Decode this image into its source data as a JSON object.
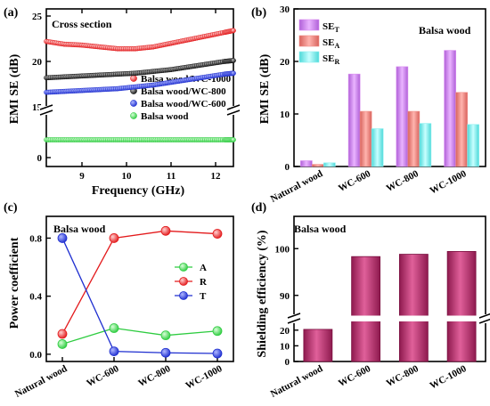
{
  "chart_data": [
    {
      "panel": "(a)",
      "type": "scatter",
      "title": "Cross section",
      "xlabel": "Frequency (GHz)",
      "ylabel": "EMI SE (dB)",
      "xlim": [
        8.2,
        12.4
      ],
      "x_ticks": [
        9,
        10,
        11,
        12
      ],
      "y_ticks_upper": [
        15,
        20,
        25
      ],
      "y_ticks_lower": [
        0
      ],
      "axis_break": [
        2,
        15
      ],
      "legend_position": "center-right",
      "series": [
        {
          "name": "Balsa wood/WC-1000",
          "color": "#e31a1c",
          "x": [
            8.2,
            8.6,
            9.0,
            9.4,
            9.8,
            10.2,
            10.6,
            11.0,
            11.4,
            11.8,
            12.2,
            12.4
          ],
          "y": [
            22.2,
            21.9,
            21.8,
            21.6,
            21.4,
            21.4,
            21.6,
            22.0,
            22.4,
            22.8,
            23.2,
            23.4
          ]
        },
        {
          "name": "Balsa wood/WC-800",
          "color": "#111111",
          "x": [
            8.2,
            8.6,
            9.0,
            9.4,
            9.8,
            10.2,
            10.6,
            11.0,
            11.4,
            11.8,
            12.2,
            12.4
          ],
          "y": [
            18.2,
            18.3,
            18.4,
            18.5,
            18.6,
            18.7,
            18.9,
            19.1,
            19.4,
            19.7,
            20.0,
            20.1
          ]
        },
        {
          "name": "Balsa wood/WC-600",
          "color": "#1f2fd0",
          "x": [
            8.2,
            8.6,
            9.0,
            9.4,
            9.8,
            10.2,
            10.6,
            11.0,
            11.4,
            11.8,
            12.2,
            12.4
          ],
          "y": [
            16.6,
            16.7,
            16.8,
            16.9,
            17.0,
            17.2,
            17.4,
            17.7,
            18.0,
            18.3,
            18.6,
            18.7
          ]
        },
        {
          "name": "Balsa wood",
          "color": "#2ecc40",
          "x": [
            8.2,
            8.6,
            9.0,
            9.4,
            9.8,
            10.2,
            10.6,
            11.0,
            11.4,
            11.8,
            12.2,
            12.4
          ],
          "y": [
            1.0,
            1.0,
            1.0,
            1.0,
            1.0,
            1.0,
            1.0,
            1.0,
            1.0,
            1.0,
            1.0,
            1.0
          ]
        }
      ]
    },
    {
      "panel": "(b)",
      "type": "bar",
      "title": "Balsa wood",
      "xlabel": "",
      "ylabel": "EMI SE (dB)",
      "ylim": [
        0,
        30
      ],
      "y_ticks": [
        0,
        10,
        20,
        30
      ],
      "categories": [
        "Natural wood",
        "WC-600",
        "WC-800",
        "WC-1000"
      ],
      "legend_position": "top-left",
      "series": [
        {
          "name": "SE",
          "sub": "T",
          "color": "#d98cf0",
          "values": [
            1.1,
            17.6,
            19.0,
            22.1
          ]
        },
        {
          "name": "SE",
          "sub": "A",
          "color": "#f08c86",
          "values": [
            0.4,
            10.5,
            10.5,
            14.1
          ]
        },
        {
          "name": "SE",
          "sub": "R",
          "color": "#8cf0f0",
          "values": [
            0.7,
            7.2,
            8.2,
            8.0
          ]
        }
      ]
    },
    {
      "panel": "(c)",
      "type": "line",
      "title": "Balsa wood",
      "xlabel": "",
      "ylabel": "Power coefficient",
      "ylim": [
        -0.05,
        0.95
      ],
      "y_ticks": [
        0.0,
        0.4,
        0.8
      ],
      "categories": [
        "Natural wood",
        "WC-600",
        "WC-800",
        "WC-1000"
      ],
      "legend_position": "center-right",
      "series": [
        {
          "name": "A",
          "color": "#2ecc40",
          "values": [
            0.07,
            0.18,
            0.13,
            0.16
          ]
        },
        {
          "name": "R",
          "color": "#e31a1c",
          "values": [
            0.14,
            0.8,
            0.85,
            0.83
          ]
        },
        {
          "name": "T",
          "color": "#1f2fd0",
          "values": [
            0.8,
            0.02,
            0.01,
            0.005
          ]
        }
      ]
    },
    {
      "panel": "(d)",
      "type": "bar",
      "title": "Balsa wood",
      "xlabel": "",
      "ylabel": "Shielding efficiency (%)",
      "y_ticks_upper": [
        90,
        100
      ],
      "y_ticks_lower": [
        0,
        10,
        20
      ],
      "axis_break": [
        25,
        85
      ],
      "categories": [
        "Natural wood",
        "WC-600",
        "WC-800",
        "WC-1000"
      ],
      "series": [
        {
          "name": "",
          "color": "#c0306e",
          "values": [
            20.5,
            98.3,
            98.8,
            99.4
          ]
        }
      ]
    }
  ]
}
